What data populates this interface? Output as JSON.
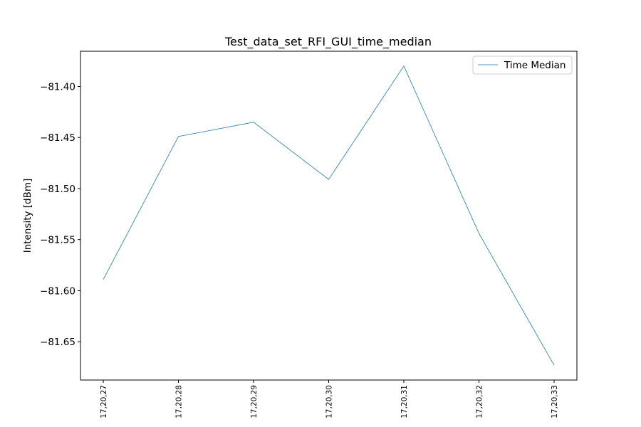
{
  "chart_data": {
    "type": "line",
    "title": "Test_data_set_RFI_GUI_time_median",
    "xlabel": "",
    "ylabel": "Intensity [dBm]",
    "x": [
      "17,20,27",
      "17,20,28",
      "17,20,29",
      "17,20,30",
      "17,20,31",
      "17,20,32",
      "17,20,33"
    ],
    "series": [
      {
        "name": "Time Median",
        "color": "#1f77b4",
        "values": [
          -81.589,
          -81.449,
          -81.435,
          -81.491,
          -81.38,
          -81.544,
          -81.673
        ]
      }
    ],
    "yticks": [
      -81.65,
      -81.6,
      -81.55,
      -81.5,
      -81.45,
      -81.4
    ],
    "ytick_labels": [
      "−81.65",
      "−81.60",
      "−81.55",
      "−81.50",
      "−81.45",
      "−81.40"
    ],
    "ylim": [
      -81.6875,
      -81.3655
    ],
    "grid": false,
    "legend_position": "upper right"
  }
}
